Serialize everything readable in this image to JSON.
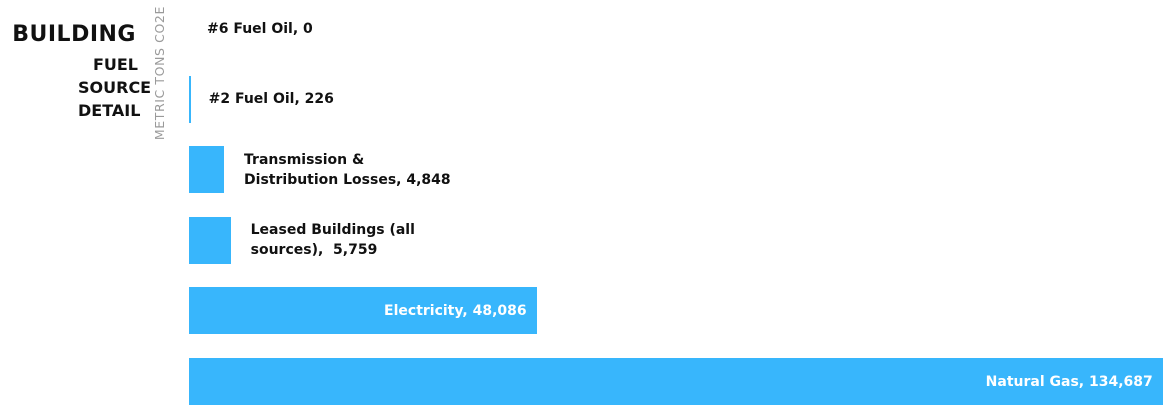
{
  "chart_data": {
    "type": "bar",
    "orientation": "horizontal",
    "title": "BUILDING",
    "subtitle": "FUEL SOURCE DETAIL",
    "y_axis_label": "METRIC TONS CO2E",
    "values": [
      0,
      226,
      4848,
      5759,
      48086,
      134687
    ],
    "value_labels": [
      "#6 Fuel Oil, 0",
      "#2 Fuel Oil, 226",
      "Transmission &\nDistribution Losses, 4,848",
      "Leased Buildings (all\nsources),  5,759",
      "Electricity, 48,086",
      "Natural Gas, 134,687"
    ],
    "color": "#38b6fc",
    "xlim": [
      0,
      135000
    ]
  }
}
